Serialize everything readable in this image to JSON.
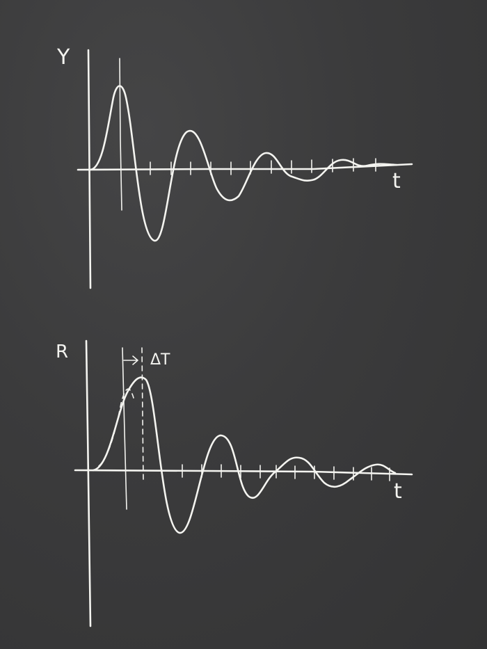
{
  "top_plot": {
    "y_axis_label": "Y",
    "x_axis_label": "t"
  },
  "bottom_plot": {
    "y_axis_label": "R",
    "x_axis_label": "t",
    "delay_label": "ΔT"
  },
  "colors": {
    "background": "#3a3a3b",
    "chalk": "#f4f4f0"
  }
}
